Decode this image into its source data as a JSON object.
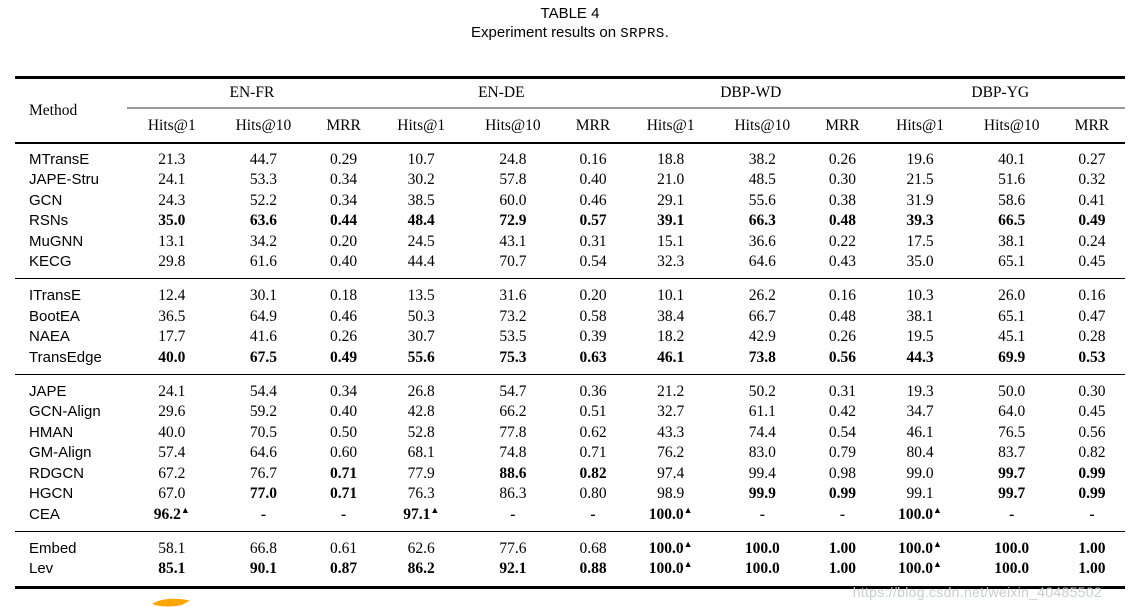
{
  "title": {
    "table_label": "TABLE 4",
    "caption_prefix": "Experiment results on ",
    "dataset": "SRPRS",
    "caption_suffix": "."
  },
  "watermark": "https://blog.csdn.net/weixin_40485502",
  "annotation": {
    "swoosh_color": "#FFA500"
  },
  "table": {
    "method_header": "Method",
    "group_headers": [
      "EN-FR",
      "EN-DE",
      "DBP-WD",
      "DBP-YG"
    ],
    "metric_headers": [
      "Hits@1",
      "Hits@10",
      "MRR"
    ],
    "marker_symbol": "▲",
    "row_groups": [
      {
        "rows": [
          {
            "method": "MTransE",
            "values": [
              "21.3",
              "44.7",
              "0.29",
              "10.7",
              "24.8",
              "0.16",
              "18.8",
              "38.2",
              "0.26",
              "19.6",
              "40.1",
              "0.27"
            ],
            "bold": [],
            "marker": []
          },
          {
            "method": "JAPE-Stru",
            "values": [
              "24.1",
              "53.3",
              "0.34",
              "30.2",
              "57.8",
              "0.40",
              "21.0",
              "48.5",
              "0.30",
              "21.5",
              "51.6",
              "0.32"
            ],
            "bold": [],
            "marker": []
          },
          {
            "method": "GCN",
            "values": [
              "24.3",
              "52.2",
              "0.34",
              "38.5",
              "60.0",
              "0.46",
              "29.1",
              "55.6",
              "0.38",
              "31.9",
              "58.6",
              "0.41"
            ],
            "bold": [],
            "marker": []
          },
          {
            "method": "RSNs",
            "values": [
              "35.0",
              "63.6",
              "0.44",
              "48.4",
              "72.9",
              "0.57",
              "39.1",
              "66.3",
              "0.48",
              "39.3",
              "66.5",
              "0.49"
            ],
            "bold": "all",
            "marker": []
          },
          {
            "method": "MuGNN",
            "values": [
              "13.1",
              "34.2",
              "0.20",
              "24.5",
              "43.1",
              "0.31",
              "15.1",
              "36.6",
              "0.22",
              "17.5",
              "38.1",
              "0.24"
            ],
            "bold": [],
            "marker": []
          },
          {
            "method": "KECG",
            "values": [
              "29.8",
              "61.6",
              "0.40",
              "44.4",
              "70.7",
              "0.54",
              "32.3",
              "64.6",
              "0.43",
              "35.0",
              "65.1",
              "0.45"
            ],
            "bold": [],
            "marker": []
          }
        ]
      },
      {
        "rows": [
          {
            "method": "ITransE",
            "values": [
              "12.4",
              "30.1",
              "0.18",
              "13.5",
              "31.6",
              "0.20",
              "10.1",
              "26.2",
              "0.16",
              "10.3",
              "26.0",
              "0.16"
            ],
            "bold": [],
            "marker": []
          },
          {
            "method": "BootEA",
            "values": [
              "36.5",
              "64.9",
              "0.46",
              "50.3",
              "73.2",
              "0.58",
              "38.4",
              "66.7",
              "0.48",
              "38.1",
              "65.1",
              "0.47"
            ],
            "bold": [],
            "marker": []
          },
          {
            "method": "NAEA",
            "values": [
              "17.7",
              "41.6",
              "0.26",
              "30.7",
              "53.5",
              "0.39",
              "18.2",
              "42.9",
              "0.26",
              "19.5",
              "45.1",
              "0.28"
            ],
            "bold": [],
            "marker": []
          },
          {
            "method": "TransEdge",
            "values": [
              "40.0",
              "67.5",
              "0.49",
              "55.6",
              "75.3",
              "0.63",
              "46.1",
              "73.8",
              "0.56",
              "44.3",
              "69.9",
              "0.53"
            ],
            "bold": "all",
            "marker": []
          }
        ]
      },
      {
        "rows": [
          {
            "method": "JAPE",
            "values": [
              "24.1",
              "54.4",
              "0.34",
              "26.8",
              "54.7",
              "0.36",
              "21.2",
              "50.2",
              "0.31",
              "19.3",
              "50.0",
              "0.30"
            ],
            "bold": [],
            "marker": []
          },
          {
            "method": "GCN-Align",
            "values": [
              "29.6",
              "59.2",
              "0.40",
              "42.8",
              "66.2",
              "0.51",
              "32.7",
              "61.1",
              "0.42",
              "34.7",
              "64.0",
              "0.45"
            ],
            "bold": [],
            "marker": []
          },
          {
            "method": "HMAN",
            "values": [
              "40.0",
              "70.5",
              "0.50",
              "52.8",
              "77.8",
              "0.62",
              "43.3",
              "74.4",
              "0.54",
              "46.1",
              "76.5",
              "0.56"
            ],
            "bold": [],
            "marker": []
          },
          {
            "method": "GM-Align",
            "values": [
              "57.4",
              "64.6",
              "0.60",
              "68.1",
              "74.8",
              "0.71",
              "76.2",
              "83.0",
              "0.79",
              "80.4",
              "83.7",
              "0.82"
            ],
            "bold": [],
            "marker": []
          },
          {
            "method": "RDGCN",
            "values": [
              "67.2",
              "76.7",
              "0.71",
              "77.9",
              "88.6",
              "0.82",
              "97.4",
              "99.4",
              "0.98",
              "99.0",
              "99.7",
              "0.99"
            ],
            "bold": [
              2,
              4,
              5,
              10,
              11
            ],
            "marker": []
          },
          {
            "method": "HGCN",
            "values": [
              "67.0",
              "77.0",
              "0.71",
              "76.3",
              "86.3",
              "0.80",
              "98.9",
              "99.9",
              "0.99",
              "99.1",
              "99.7",
              "0.99"
            ],
            "bold": [
              1,
              2,
              7,
              8,
              10,
              11
            ],
            "marker": []
          },
          {
            "method": "CEA",
            "values": [
              "96.2",
              "-",
              "-",
              "97.1",
              "-",
              "-",
              "100.0",
              "-",
              "-",
              "100.0",
              "-",
              "-"
            ],
            "bold": "all",
            "marker": [
              0,
              3,
              6,
              9
            ]
          }
        ]
      },
      {
        "rows": [
          {
            "method": "Embed",
            "values": [
              "58.1",
              "66.8",
              "0.61",
              "62.6",
              "77.6",
              "0.68",
              "100.0",
              "100.0",
              "1.00",
              "100.0",
              "100.0",
              "1.00"
            ],
            "bold": [
              6,
              7,
              8,
              9,
              10,
              11
            ],
            "marker": [
              6,
              9
            ]
          },
          {
            "method": "Lev",
            "values": [
              "85.1",
              "90.1",
              "0.87",
              "86.2",
              "92.1",
              "0.88",
              "100.0",
              "100.0",
              "1.00",
              "100.0",
              "100.0",
              "1.00"
            ],
            "bold": "all",
            "marker": [
              6,
              9
            ]
          }
        ]
      }
    ]
  }
}
